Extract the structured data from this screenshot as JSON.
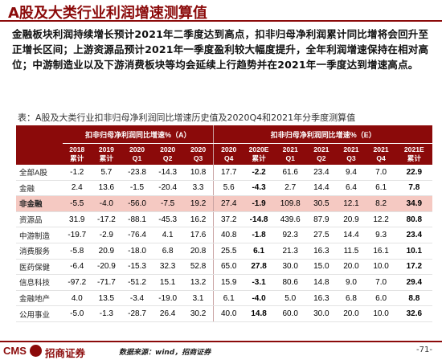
{
  "title": "A股及大类行业利润增速测算值",
  "summary": "金融板块利润持续增长预计2021年二季度达到高点，扣非归母净利润累计同比增将会回升至正增长区间；上游资源品预计2021年一季度盈利较大幅度提升，全年利润增速保持在相对高位；中游制造业以及下游消费板块等均会延续上行趋势并在2021年一季度达到增速高点。",
  "table_title": "表：A股及大类行业扣非归母净利润同比增速历史值及2020Q4和2021年分季度测算值",
  "table": {
    "group_hist": "扣非归母净利润同比增速%（A）",
    "group_est": "扣非归母净利润同比增速%（E）",
    "columns": [
      {
        "l1": "2018",
        "l2": "累计"
      },
      {
        "l1": "2019",
        "l2": "累计"
      },
      {
        "l1": "2020",
        "l2": "Q1"
      },
      {
        "l1": "2020",
        "l2": "Q2"
      },
      {
        "l1": "2020",
        "l2": "Q3"
      },
      {
        "l1": "2020",
        "l2": "Q4"
      },
      {
        "l1": "2020E",
        "l2": "累计"
      },
      {
        "l1": "2021",
        "l2": "Q1"
      },
      {
        "l1": "2021",
        "l2": "Q2"
      },
      {
        "l1": "2021",
        "l2": "Q3"
      },
      {
        "l1": "2021",
        "l2": "Q4"
      },
      {
        "l1": "2021E",
        "l2": "累计"
      }
    ],
    "rows": [
      {
        "name": "全部A股",
        "values": [
          "-1.2",
          "5.7",
          "-23.8",
          "-14.3",
          "10.8",
          "17.7",
          "-2.2",
          "61.6",
          "23.4",
          "9.4",
          "7.0",
          "22.9"
        ]
      },
      {
        "name": "金融",
        "values": [
          "2.4",
          "13.6",
          "-1.5",
          "-20.4",
          "3.3",
          "5.6",
          "-4.3",
          "2.7",
          "14.4",
          "6.4",
          "6.1",
          "7.8"
        ]
      },
      {
        "name": "非金融",
        "values": [
          "-5.5",
          "-4.0",
          "-56.0",
          "-7.5",
          "19.2",
          "27.4",
          "-1.9",
          "109.8",
          "30.5",
          "12.1",
          "8.2",
          "34.9"
        ]
      },
      {
        "name": "资源品",
        "values": [
          "31.9",
          "-17.2",
          "-88.1",
          "-45.3",
          "16.2",
          "37.2",
          "-14.8",
          "439.6",
          "87.9",
          "20.9",
          "12.2",
          "80.8"
        ]
      },
      {
        "name": "中游制造",
        "values": [
          "-19.7",
          "-2.9",
          "-76.4",
          "4.1",
          "17.6",
          "40.8",
          "-1.8",
          "92.3",
          "27.5",
          "14.4",
          "9.3",
          "23.4"
        ]
      },
      {
        "name": "消费服务",
        "values": [
          "-5.8",
          "20.9",
          "-18.0",
          "6.8",
          "20.8",
          "25.5",
          "6.1",
          "21.3",
          "16.3",
          "11.5",
          "16.1",
          "10.1"
        ]
      },
      {
        "name": "医药保健",
        "values": [
          "-6.4",
          "-20.9",
          "-15.3",
          "32.3",
          "52.8",
          "65.0",
          "27.8",
          "30.0",
          "15.0",
          "20.0",
          "10.0",
          "17.2"
        ]
      },
      {
        "name": "信息科技",
        "values": [
          "-97.2",
          "-71.7",
          "-51.2",
          "15.1",
          "13.2",
          "15.9",
          "-3.1",
          "80.6",
          "14.8",
          "9.0",
          "7.0",
          "29.4"
        ]
      },
      {
        "name": "金融地产",
        "values": [
          "4.0",
          "13.5",
          "-3.4",
          "-19.0",
          "3.1",
          "6.1",
          "-4.0",
          "5.0",
          "16.3",
          "6.8",
          "6.0",
          "8.8"
        ]
      },
      {
        "name": "公用事业",
        "values": [
          "-5.0",
          "-1.3",
          "-28.7",
          "26.4",
          "30.2",
          "40.0",
          "14.8",
          "60.0",
          "30.0",
          "20.0",
          "10.0",
          "32.6"
        ]
      }
    ]
  },
  "footer": {
    "logo_cms": "CMS",
    "logo_name": "招商证券",
    "source": "数据来源：wind，招商证券",
    "page": "-71-"
  },
  "colors": {
    "brand": "#8b0a0a",
    "highlight_row": "#f5c9c2"
  }
}
